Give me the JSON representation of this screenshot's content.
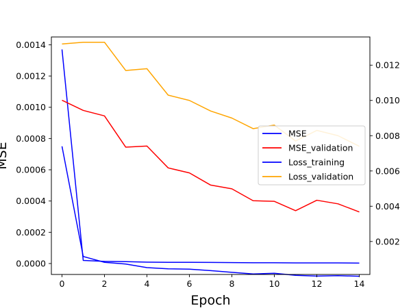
{
  "chart_data": {
    "type": "line",
    "title": "",
    "xlabel": "Epoch",
    "ylabel_left": "MSE",
    "ylabel_right": "",
    "x": [
      0,
      1,
      2,
      3,
      4,
      5,
      6,
      7,
      8,
      9,
      10,
      11,
      12,
      13,
      14
    ],
    "xlim": [
      -0.5,
      14.5
    ],
    "x_ticks": [
      0,
      2,
      4,
      6,
      8,
      10,
      12,
      14
    ],
    "y_left_lim": [
      -7e-05,
      0.00145
    ],
    "y_left_ticks": [
      "0.0000",
      "0.0002",
      "0.0004",
      "0.0006",
      "0.0008",
      "0.0010",
      "0.0012",
      "0.0014"
    ],
    "y_left_tick_values": [
      0,
      0.0002,
      0.0004,
      0.0006,
      0.0008,
      0.001,
      0.0012,
      0.0014
    ],
    "y_right_lim": [
      0.00013,
      0.0136
    ],
    "y_right_ticks": [
      "0.002",
      "0.004",
      "0.006",
      "0.008",
      "0.010",
      "0.012"
    ],
    "y_right_tick_values": [
      0.002,
      0.004,
      0.006,
      0.008,
      0.01,
      0.012
    ],
    "grid": false,
    "legend_position": "center-right",
    "series": [
      {
        "name": "MSE",
        "axis": "left",
        "color": "#0000ff",
        "values": [
          0.00137,
          2e-05,
          1.4e-05,
          1.2e-05,
          9e-06,
          8e-06,
          8e-06,
          7e-06,
          6e-06,
          5e-06,
          5e-06,
          4e-06,
          4e-06,
          4e-06,
          3e-06
        ]
      },
      {
        "name": "MSE_validation",
        "axis": "left",
        "color": "#ff0000",
        "values": [
          0.001045,
          0.00098,
          0.000945,
          0.000745,
          0.000752,
          0.000612,
          0.00058,
          0.000502,
          0.000478,
          0.000402,
          0.000398,
          0.000338,
          0.000405,
          0.000382,
          0.00033
        ]
      },
      {
        "name": "Loss_training",
        "axis": "right",
        "color": "#0000ff",
        "values": [
          0.0074,
          0.00115,
          0.00082,
          0.00072,
          0.00052,
          0.00045,
          0.00043,
          0.00035,
          0.00025,
          0.00016,
          0.0002,
          8e-05,
          4e-05,
          6e-05,
          3e-05
        ]
      },
      {
        "name": "Loss_validation",
        "axis": "right",
        "color": "#ffa500",
        "values": [
          0.0132,
          0.0133,
          0.0133,
          0.0117,
          0.0118,
          0.0103,
          0.01,
          0.0094,
          0.009,
          0.0084,
          0.0086,
          0.0077,
          0.0083,
          0.008,
          0.0074
        ]
      }
    ]
  }
}
